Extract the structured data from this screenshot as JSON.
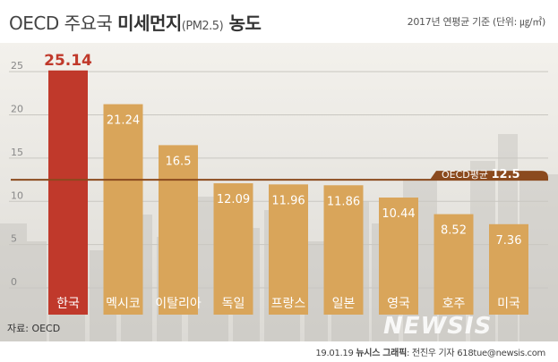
{
  "header": {
    "title_prefix": "OECD 주요국 ",
    "title_bold": "미세먼지",
    "title_sub": "(PM2.5)",
    "title_suffix": " 농도",
    "unit_note": "2017년 연평균 기준 (단위: ㎍/㎥)"
  },
  "footer": {
    "source": "자료: OECD",
    "watermark": "NEWSIS",
    "date": "19.01.19 ",
    "org": "뉴시스 그래픽",
    "author": ": 전진우 기자 618tue@newsis.com"
  },
  "colors": {
    "highlight_bar": "#c0392b",
    "bar": "#d9a55a",
    "highlight_label": "#c0392b",
    "average_line": "#8b4a1e"
  },
  "chart_data": {
    "type": "bar",
    "categories": [
      "한국",
      "멕시코",
      "이탈리아",
      "독일",
      "프랑스",
      "일본",
      "영국",
      "호주",
      "미국"
    ],
    "values": [
      25.14,
      21.24,
      16.5,
      12.09,
      11.96,
      11.86,
      10.44,
      8.52,
      7.36
    ],
    "value_labels": [
      "25.14",
      "21.24",
      "16.5",
      "12.09",
      "11.96",
      "11.86",
      "10.44",
      "8.52",
      "7.36"
    ],
    "highlight_index": 0,
    "yticks": [
      "0",
      "5",
      "10",
      "15",
      "20",
      "25"
    ],
    "ylim": [
      0,
      27.5
    ],
    "grid": true,
    "reference_line": {
      "label": "OECD평균",
      "value_label": "12.5",
      "value": 12.5
    }
  }
}
